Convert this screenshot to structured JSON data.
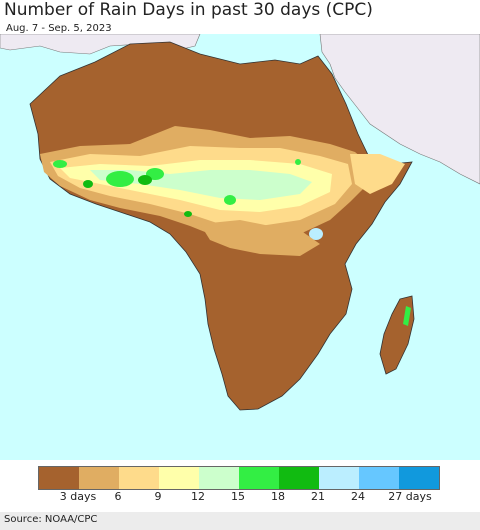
{
  "title": "Number of Rain Days in past 30 days (CPC)",
  "subtitle": "Aug. 7 - Sep. 5, 2023",
  "source": "Source: NOAA/CPC",
  "legend": {
    "colors": [
      "#a5622e",
      "#e0ad62",
      "#fedb8b",
      "#ffffaa",
      "#ccffcc",
      "#33ee44",
      "#11bb11",
      "#bbeeff",
      "#66c7ff",
      "#1199dd"
    ],
    "ticks": [
      "3 days",
      "6",
      "9",
      "12",
      "15",
      "18",
      "21",
      "24",
      "27 days"
    ]
  },
  "colors": {
    "ocean": "#ccffff",
    "land_dry": "#a5622e",
    "non_africa_land": "#eeeaf2"
  }
}
